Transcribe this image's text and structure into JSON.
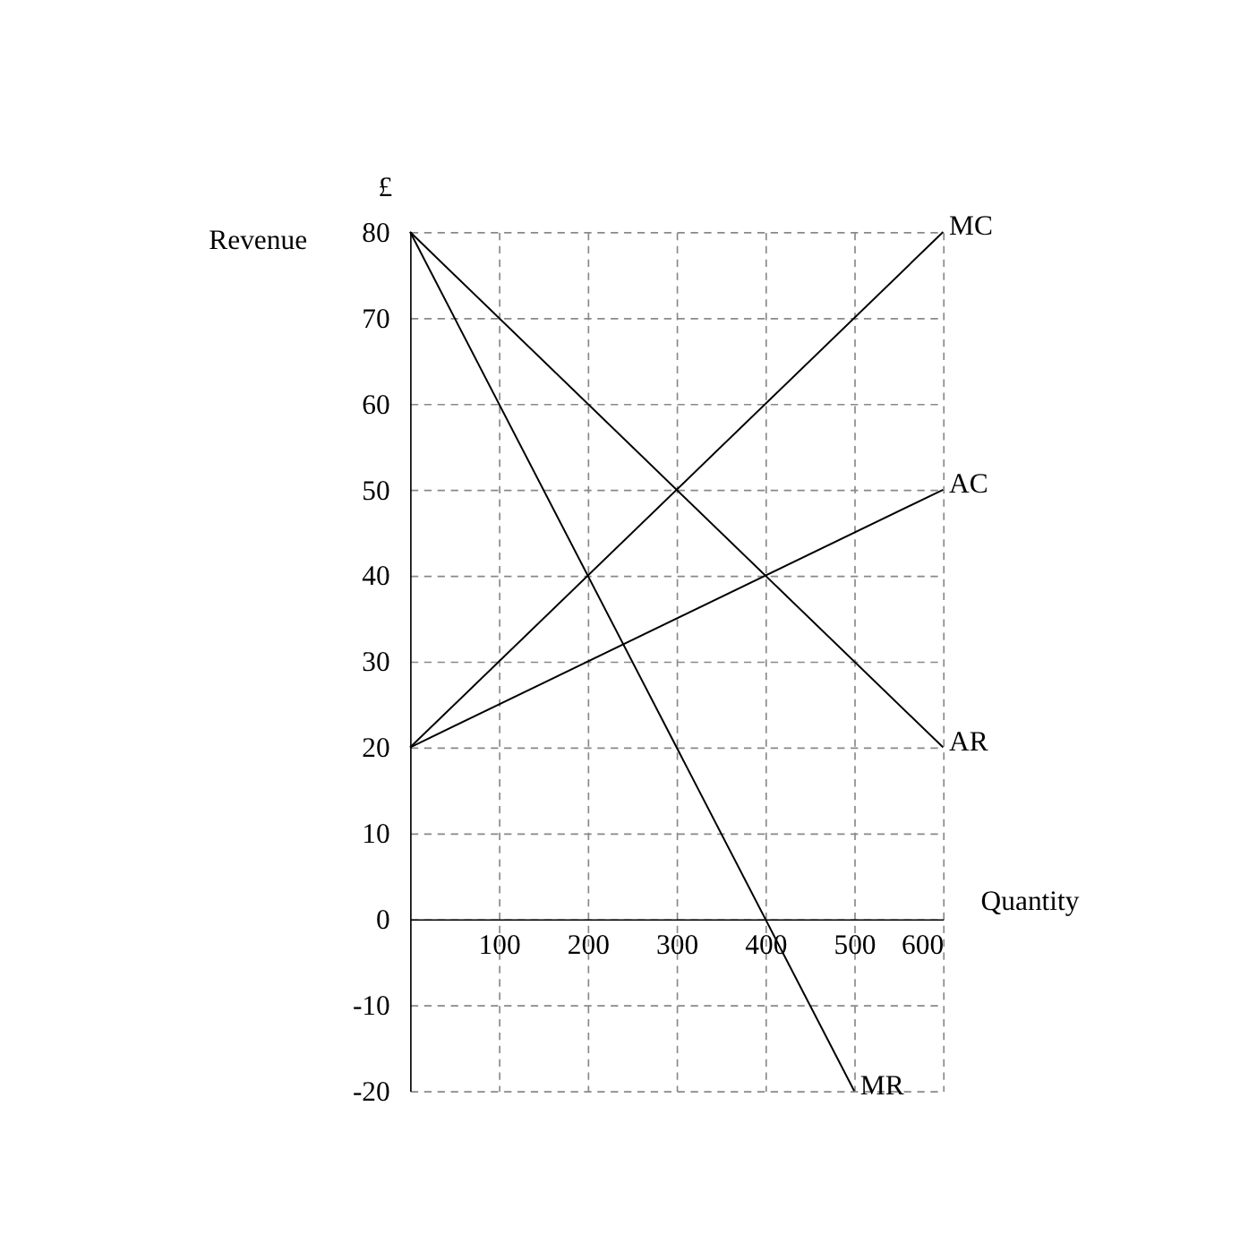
{
  "chart_data": {
    "type": "line",
    "ylabel": "Revenue",
    "xlabel": "Quantity",
    "annotations": [
      "£"
    ],
    "series": [
      {
        "name": "MC",
        "color": "#000000",
        "x": [
          0,
          600
        ],
        "values": [
          20,
          80
        ]
      },
      {
        "name": "AC",
        "color": "#000000",
        "x": [
          0,
          600
        ],
        "values": [
          20,
          50
        ]
      },
      {
        "name": "AR",
        "color": "#000000",
        "x": [
          0,
          600
        ],
        "values": [
          80,
          20
        ]
      },
      {
        "name": "MR",
        "color": "#000000",
        "x": [
          0,
          500
        ],
        "values": [
          80,
          -20
        ]
      }
    ],
    "xlim": [
      0,
      600
    ],
    "xticks": [
      100,
      200,
      300,
      400,
      500,
      600
    ],
    "ylim": [
      -20,
      80
    ],
    "yticks": [
      -20,
      -10,
      0,
      10,
      20,
      30,
      40,
      50,
      60,
      70,
      80
    ],
    "grid": true,
    "legend": false,
    "marker": "none",
    "line_style": "solid"
  }
}
